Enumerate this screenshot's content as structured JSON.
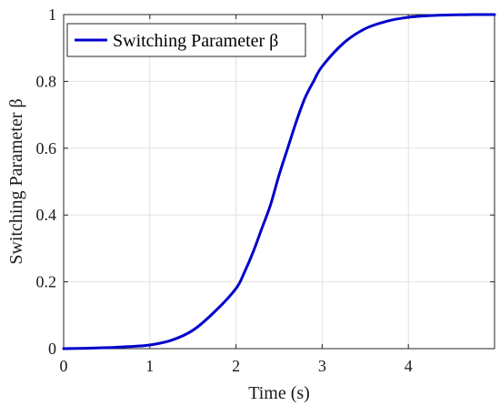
{
  "chart_data": {
    "type": "line",
    "title": "",
    "xlabel": "Time (s)",
    "ylabel": "Switching Parameter β",
    "xlim": [
      0,
      5
    ],
    "ylim": [
      0,
      1
    ],
    "x_ticks": [
      0,
      1,
      2,
      3,
      4
    ],
    "x_tick_labels": [
      "0",
      "1",
      "2",
      "3",
      "4"
    ],
    "y_ticks": [
      0,
      0.2,
      0.4,
      0.6,
      0.8,
      1
    ],
    "y_tick_labels": [
      "0",
      "0.2",
      "0.4",
      "0.6",
      "0.8",
      "1"
    ],
    "grid": true,
    "legend_position": "top-left",
    "colors": {
      "series": "#0000cc",
      "grid": "#e2e2e2",
      "axis": "#262626"
    },
    "series": [
      {
        "name": "Switching Parameter β",
        "x": [
          0,
          0.25,
          0.5,
          0.75,
          1.0,
          1.25,
          1.5,
          1.75,
          2.0,
          2.1,
          2.2,
          2.3,
          2.4,
          2.5,
          2.6,
          2.7,
          2.8,
          2.9,
          3.0,
          3.25,
          3.5,
          3.75,
          4.0,
          4.25,
          4.5,
          4.75,
          5.0
        ],
        "y": [
          0.0,
          0.001,
          0.003,
          0.006,
          0.011,
          0.025,
          0.055,
          0.11,
          0.18,
          0.23,
          0.29,
          0.36,
          0.43,
          0.52,
          0.6,
          0.68,
          0.75,
          0.8,
          0.845,
          0.915,
          0.958,
          0.98,
          0.992,
          0.997,
          0.999,
          1.0,
          1.0
        ]
      }
    ]
  }
}
